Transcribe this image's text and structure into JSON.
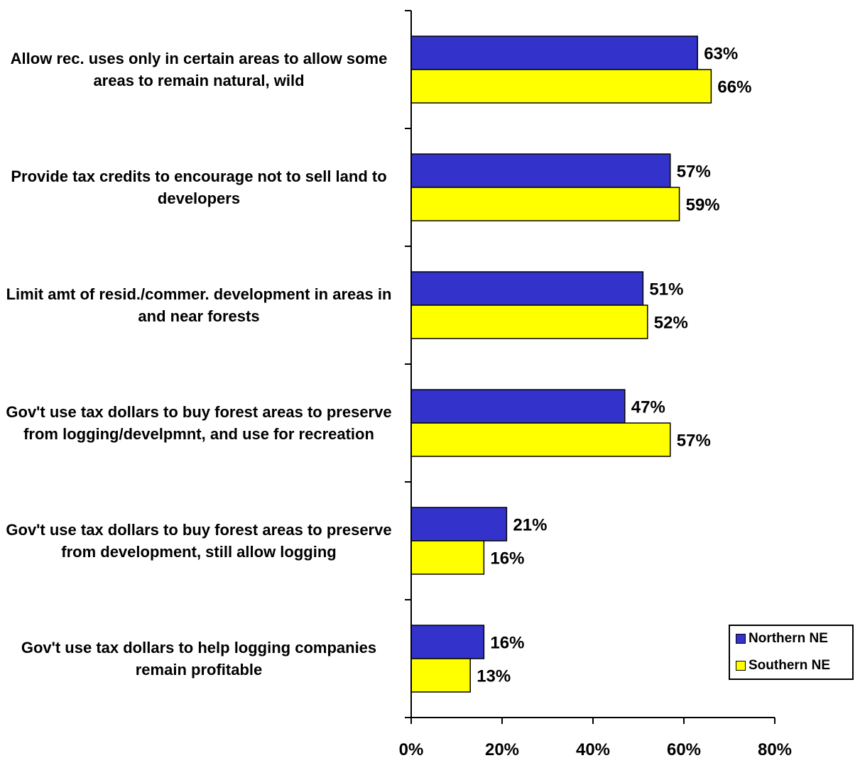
{
  "chart_data": {
    "type": "bar",
    "orientation": "horizontal",
    "categories": [
      "Allow rec. uses only in certain areas to allow some areas to remain natural, wild",
      "Provide tax credits to encourage not to sell land to developers",
      "Limit amt of resid./commer. development in areas in and near forests",
      "Gov't use tax dollars to buy forest areas to preserve from logging/develpmnt, and use for recreation",
      "Gov't use tax dollars to buy forest areas to preserve from development, still allow logging",
      "Gov't use tax dollars to help logging companies remain profitable"
    ],
    "series": [
      {
        "name": "Northern NE",
        "color": "#3333cc",
        "values": [
          63,
          57,
          51,
          47,
          21,
          16
        ],
        "labels": [
          "63%",
          "57%",
          "51%",
          "47%",
          "21%",
          "16%"
        ]
      },
      {
        "name": "Southern NE",
        "color": "#ffff00",
        "values": [
          66,
          59,
          52,
          57,
          16,
          13
        ],
        "labels": [
          "66%",
          "59%",
          "52%",
          "57%",
          "16%",
          "13%"
        ]
      }
    ],
    "xlim": [
      0,
      80
    ],
    "xticks": [
      0,
      20,
      40,
      60,
      80
    ],
    "xtick_labels": [
      "0%",
      "20%",
      "40%",
      "60%",
      "80%"
    ],
    "title": "",
    "xlabel": "",
    "ylabel": "",
    "grid": false,
    "legend_position": "bottom-right"
  }
}
